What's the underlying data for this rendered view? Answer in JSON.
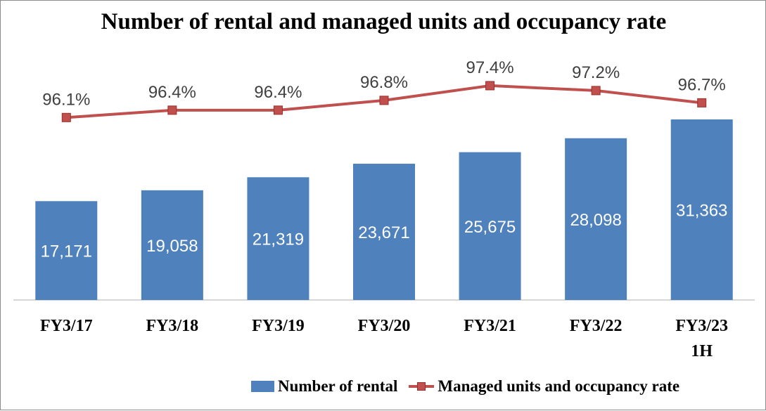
{
  "chart_data": {
    "type": "bar",
    "title": "Number of rental and managed units and occupancy rate",
    "categories": [
      [
        "FY3/17"
      ],
      [
        "FY3/18"
      ],
      [
        "FY3/19"
      ],
      [
        "FY3/20"
      ],
      [
        "FY3/21"
      ],
      [
        "FY3/22"
      ],
      [
        "FY3/23",
        "1H"
      ]
    ],
    "series": [
      {
        "name": "Number of rental",
        "type": "bar",
        "values": [
          17171,
          19058,
          21319,
          23671,
          25675,
          28098,
          31363
        ],
        "labels": [
          "17,171",
          "19,058",
          "21,319",
          "23,671",
          "25,675",
          "28,098",
          "31,363"
        ],
        "color": "#4f81bd"
      },
      {
        "name": "Managed units and occupancy rate",
        "type": "line",
        "values": [
          96.1,
          96.4,
          96.4,
          96.8,
          97.4,
          97.2,
          96.7
        ],
        "labels": [
          "96.1%",
          "96.4%",
          "96.4%",
          "96.8%",
          "97.4%",
          "97.2%",
          "96.7%"
        ],
        "color": "#c0504d"
      }
    ],
    "bar_axis_range": [
      0,
      35000
    ],
    "line_axis_range": [
      93.5,
      98.0
    ],
    "grid": false,
    "legend_position": "bottom-right"
  }
}
